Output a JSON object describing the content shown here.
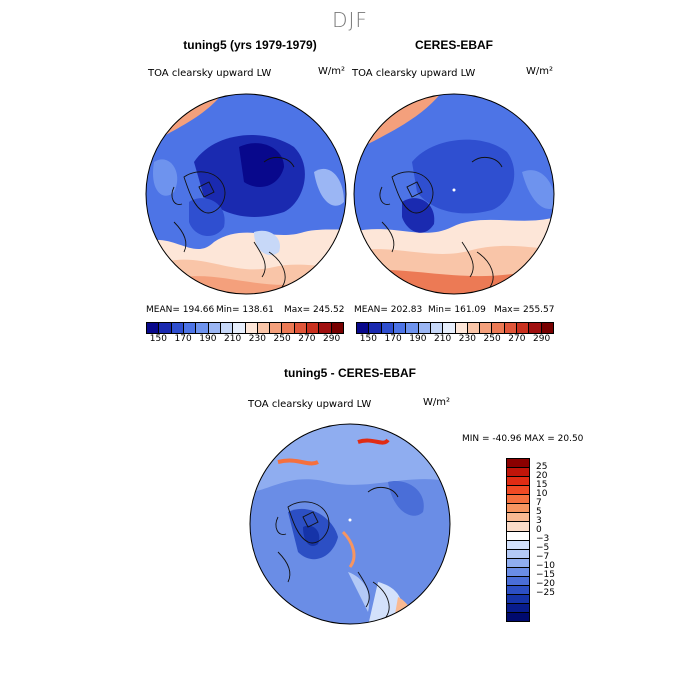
{
  "title": "DJF",
  "panels": [
    {
      "title": "tuning5 (yrs 1979-1979)",
      "variable": "TOA clearsky upward LW",
      "units": "W/m²",
      "mean_label": "MEAN= 194.66",
      "min_label": "Min= 138.61",
      "max_label": "Max= 245.52",
      "stats": {
        "mean": 194.66,
        "min": 138.61,
        "max": 245.52
      }
    },
    {
      "title": "CERES-EBAF",
      "variable": "TOA clearsky upward LW",
      "units": "W/m²",
      "mean_label": "MEAN= 202.83",
      "min_label": "Min= 161.09",
      "max_label": "Max= 255.57",
      "stats": {
        "mean": 202.83,
        "min": 161.09,
        "max": 255.57
      }
    }
  ],
  "abs_colorbar": {
    "tick_labels": [
      "150",
      "170",
      "190",
      "210",
      "230",
      "250",
      "270",
      "290"
    ],
    "colors": [
      "#08088c",
      "#1a2ab0",
      "#2f4fd0",
      "#4d74e6",
      "#6e93ee",
      "#9bb6f4",
      "#c7d8f8",
      "#e6eefc",
      "#fde6d8",
      "#f9c5a8",
      "#f4a07c",
      "#ec7a55",
      "#e0563a",
      "#c9311f",
      "#a01010",
      "#780000"
    ]
  },
  "diff_panel": {
    "title": "tuning5 - CERES-EBAF",
    "variable": "TOA clearsky upward LW",
    "units": "W/m²",
    "minmax_label": "MIN = -40.96  MAX =  20.50",
    "stats": {
      "min": -40.96,
      "max": 20.5
    }
  },
  "diff_colorbar": {
    "tick_labels": [
      "25",
      "20",
      "15",
      "10",
      "7",
      "5",
      "3",
      "0",
      "−3",
      "−5",
      "−7",
      "−10",
      "−15",
      "−20",
      "−25"
    ],
    "colors": [
      "#8b0000",
      "#c0150a",
      "#e02c14",
      "#f04a24",
      "#f5703e",
      "#f79560",
      "#f9b992",
      "#fbdcc8",
      "#ffffff",
      "#d3e1fb",
      "#b3c9f6",
      "#8fadf0",
      "#6a8de6",
      "#4a6ed8",
      "#2c4fc4",
      "#1533a8",
      "#081c8c",
      "#000a6e"
    ]
  }
}
